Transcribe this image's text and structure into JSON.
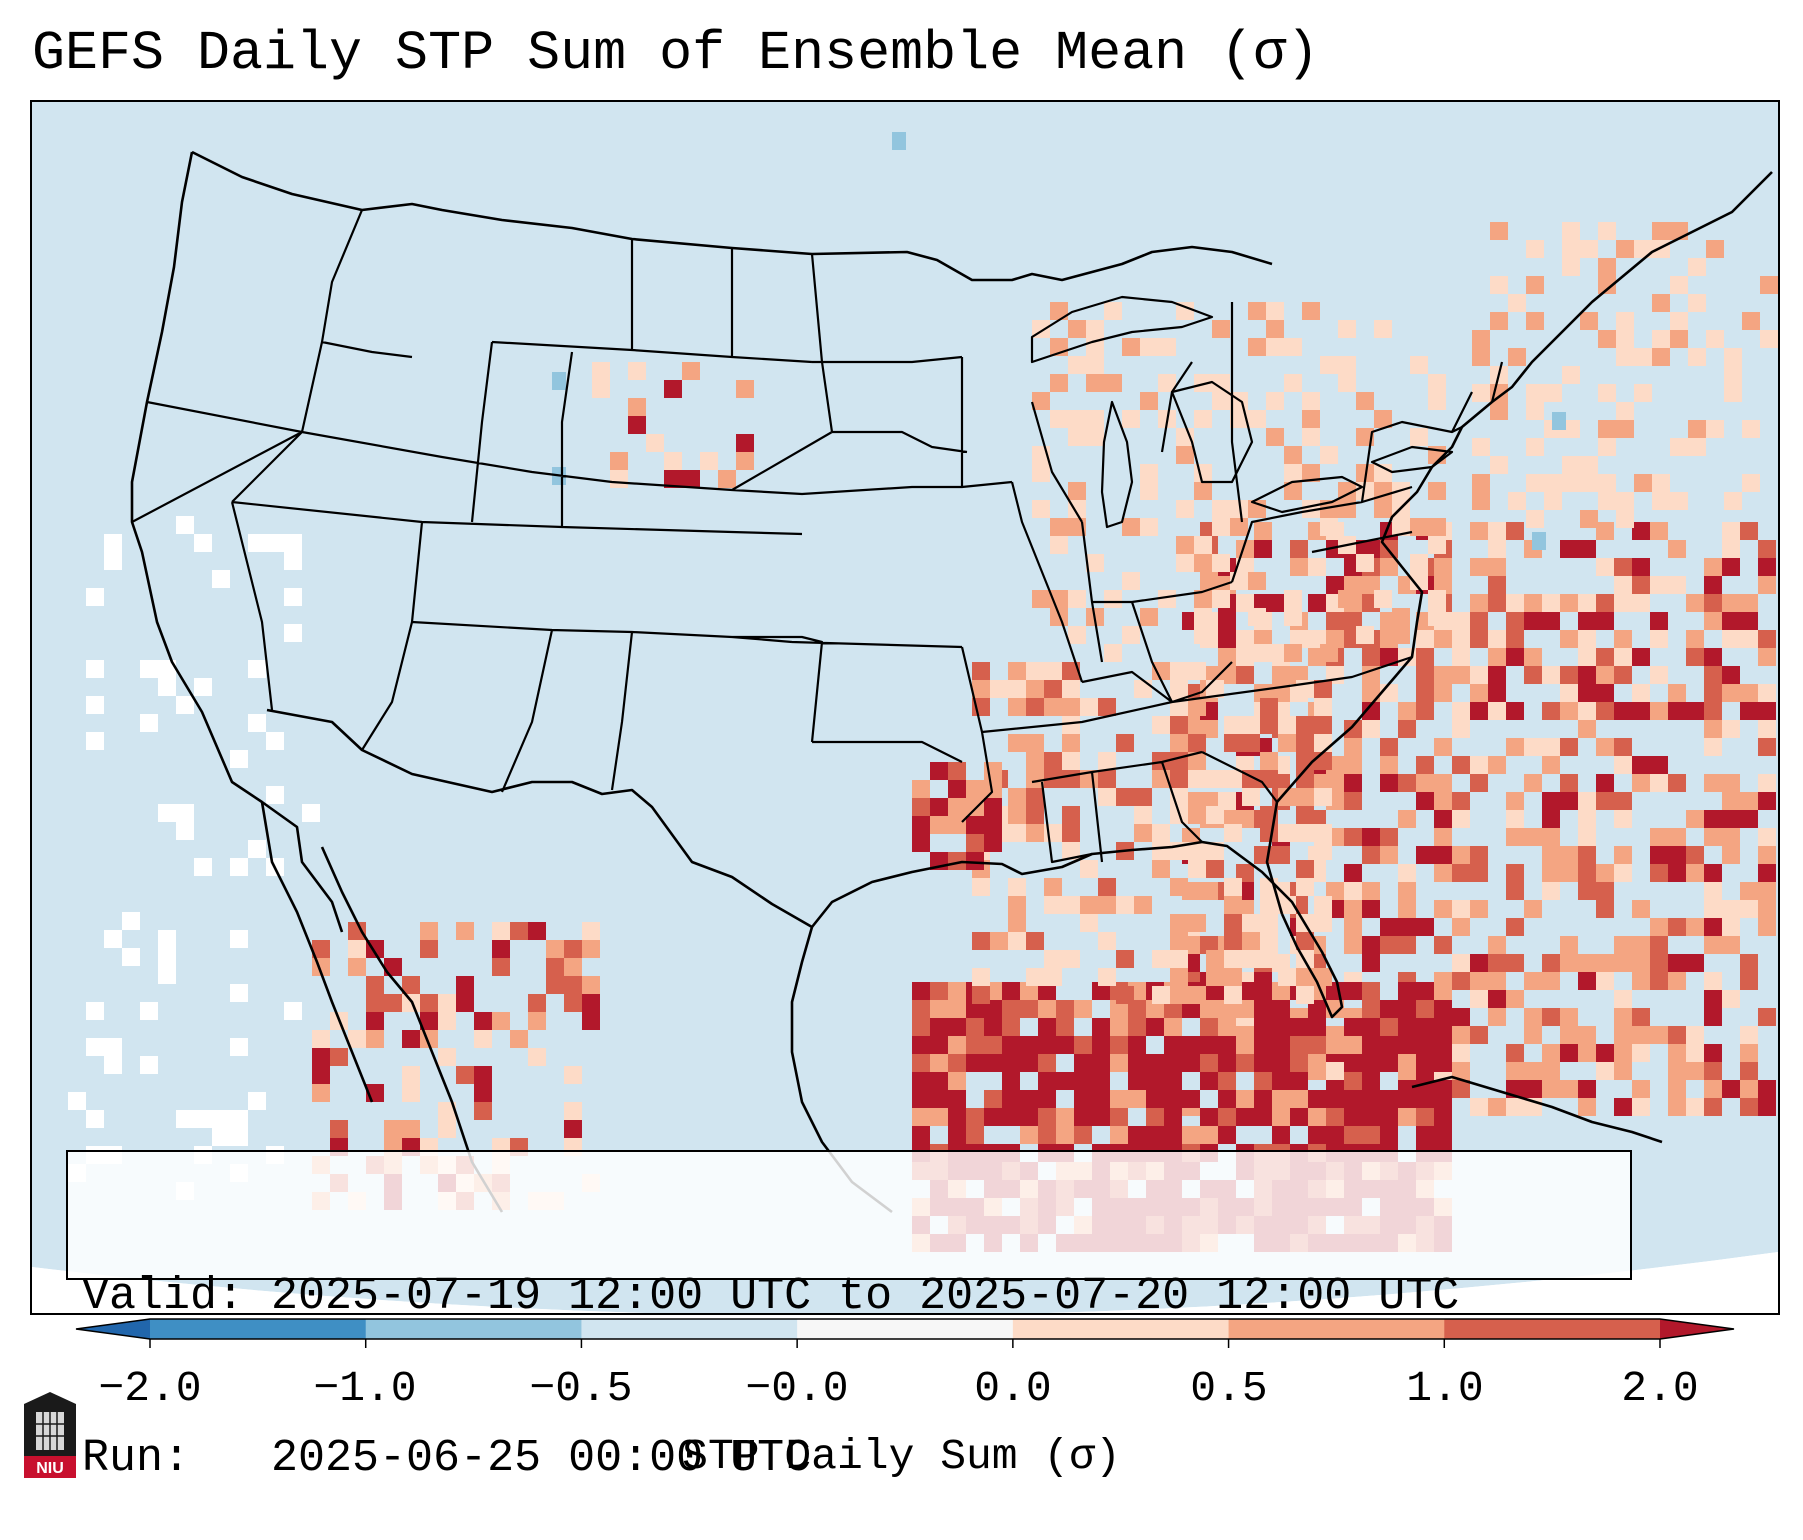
{
  "title": "GEFS Daily STP Sum of Ensemble Mean (σ)",
  "info": {
    "valid_line": "Valid: 2025-07-19 12:00 UTC to 2025-07-20 12:00 UTC",
    "run_line": "Run:   2025-06-25 00:00 UTC"
  },
  "colorbar": {
    "label": "STP Daily Sum (σ)",
    "ticks": [
      "−2.0",
      "−1.0",
      "−0.5",
      "−0.0",
      "0.0",
      "0.5",
      "1.0",
      "2.0"
    ],
    "bins": [
      {
        "color": "#3f8fc4"
      },
      {
        "color": "#92c5de"
      },
      {
        "color": "#d1e5f0"
      },
      {
        "color": "#f7f7f7"
      },
      {
        "color": "#fddbc7"
      },
      {
        "color": "#f4a582"
      },
      {
        "color": "#d6604d"
      }
    ],
    "under_color": "#2166ac",
    "over_color": "#b2182b"
  },
  "map": {
    "ocean_color": "#d1e5f0",
    "land_color": "#d1e5f0",
    "outside_color": "#ffffff",
    "border_color": "#000000"
  },
  "logo": {
    "text": "NIU",
    "color": "#c8102e"
  }
}
